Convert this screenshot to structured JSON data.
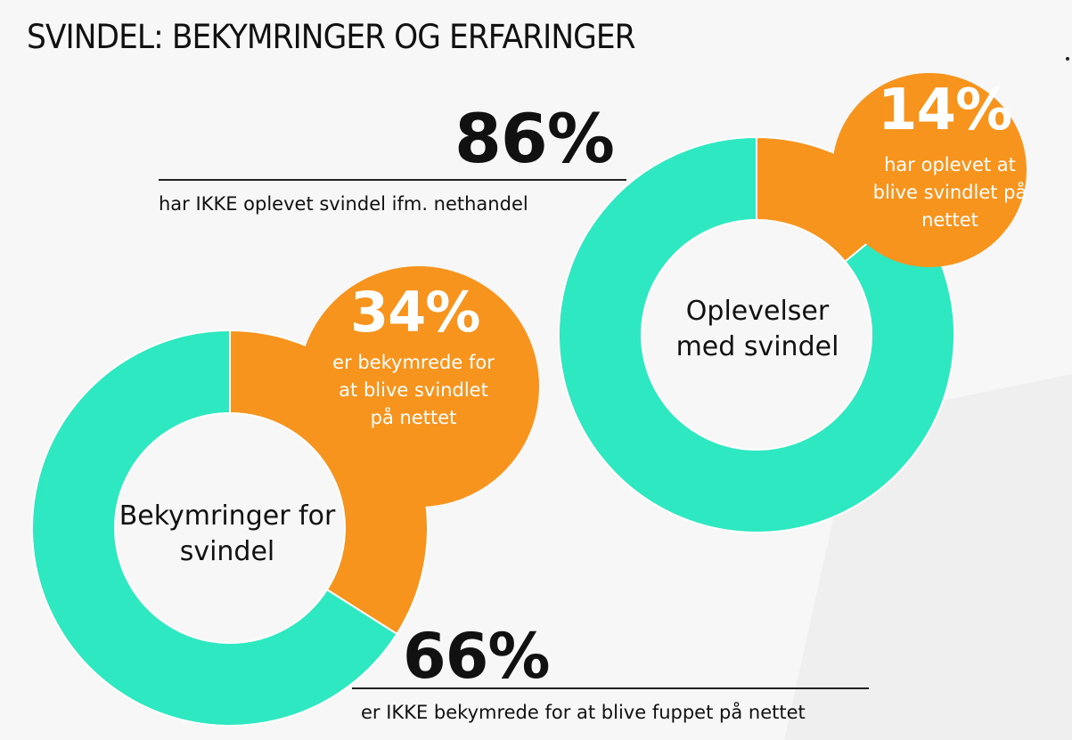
{
  "title": "SVINDEL: BEKYMRINGER OG ERFARINGER",
  "colors": {
    "teal": "#2de8c0",
    "orange": "#f7941d",
    "text": "#111111"
  },
  "chart_data": [
    {
      "type": "pie",
      "center_label": "Oplevelser med svindel",
      "slices": [
        {
          "label": "har oplevet at blive svindlet på nettet",
          "value": 14,
          "display": "14%",
          "color": "#f7941d"
        },
        {
          "label": "har IKKE oplevet svindel ifm. nethandel",
          "value": 86,
          "display": "86%",
          "color": "#2de8c0"
        }
      ]
    },
    {
      "type": "pie",
      "center_label": "Bekymringer for svindel",
      "slices": [
        {
          "label": "er bekymrede for at blive svindlet på nettet",
          "value": 34,
          "display": "34%",
          "color": "#f7941d"
        },
        {
          "label": "er IKKE bekymrede for at blive fuppet på nettet",
          "value": 66,
          "display": "66%",
          "color": "#2de8c0"
        }
      ]
    }
  ]
}
